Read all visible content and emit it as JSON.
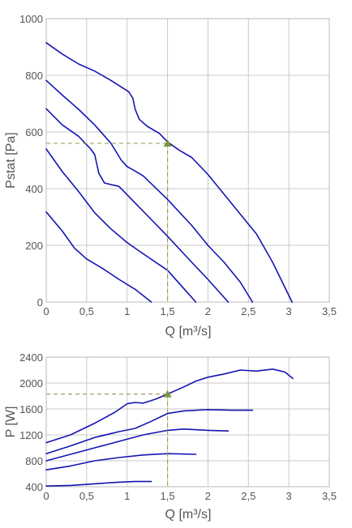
{
  "chart_data": [
    {
      "type": "line",
      "xlabel": "Q [m³/s]",
      "ylabel": "Pstat [Pa]",
      "xlim": [
        0,
        3.5
      ],
      "ylim": [
        0,
        1000
      ],
      "x_ticks": [
        "0",
        "0,5",
        "1",
        "1,5",
        "2",
        "2,5",
        "3",
        "3,5"
      ],
      "y_ticks": [
        "0",
        "200",
        "400",
        "600",
        "800",
        "1000"
      ],
      "grid": true,
      "operating_point": {
        "x": 1.5,
        "y": 560
      },
      "series": [
        {
          "points": [
            [
              0,
              915
            ],
            [
              0.2,
              875
            ],
            [
              0.4,
              840
            ],
            [
              0.6,
              815
            ],
            [
              0.8,
              782
            ],
            [
              0.95,
              755
            ],
            [
              1.02,
              742
            ],
            [
              1.07,
              720
            ],
            [
              1.1,
              680
            ],
            [
              1.15,
              645
            ],
            [
              1.25,
              620
            ],
            [
              1.4,
              595
            ],
            [
              1.5,
              565
            ],
            [
              1.65,
              535
            ],
            [
              1.8,
              510
            ],
            [
              2.0,
              450
            ],
            [
              2.2,
              380
            ],
            [
              2.4,
              310
            ],
            [
              2.6,
              240
            ],
            [
              2.8,
              140
            ],
            [
              3.04,
              0
            ]
          ]
        },
        {
          "points": [
            [
              0,
              782
            ],
            [
              0.2,
              730
            ],
            [
              0.4,
              680
            ],
            [
              0.6,
              625
            ],
            [
              0.8,
              560
            ],
            [
              0.93,
              500
            ],
            [
              1.0,
              478
            ],
            [
              1.1,
              462
            ],
            [
              1.2,
              445
            ],
            [
              1.5,
              362
            ],
            [
              1.8,
              270
            ],
            [
              2.0,
              200
            ],
            [
              2.2,
              140
            ],
            [
              2.4,
              70
            ],
            [
              2.55,
              0
            ]
          ]
        },
        {
          "points": [
            [
              0,
              682
            ],
            [
              0.2,
              625
            ],
            [
              0.4,
              585
            ],
            [
              0.55,
              540
            ],
            [
              0.6,
              520
            ],
            [
              0.65,
              455
            ],
            [
              0.72,
              420
            ],
            [
              0.9,
              408
            ],
            [
              1.2,
              320
            ],
            [
              1.5,
              232
            ],
            [
              1.8,
              140
            ],
            [
              2.0,
              80
            ],
            [
              2.25,
              0
            ]
          ]
        },
        {
          "points": [
            [
              0,
              540
            ],
            [
              0.2,
              460
            ],
            [
              0.4,
              390
            ],
            [
              0.6,
              315
            ],
            [
              0.8,
              258
            ],
            [
              1.0,
              210
            ],
            [
              1.2,
              170
            ],
            [
              1.5,
              112
            ],
            [
              1.7,
              48
            ],
            [
              1.85,
              0
            ]
          ]
        },
        {
          "points": [
            [
              0,
              318
            ],
            [
              0.2,
              250
            ],
            [
              0.35,
              190
            ],
            [
              0.5,
              152
            ],
            [
              0.7,
              118
            ],
            [
              0.9,
              80
            ],
            [
              1.1,
              45
            ],
            [
              1.3,
              0
            ]
          ]
        }
      ]
    },
    {
      "type": "line",
      "xlabel": "Q [m³/s]",
      "ylabel": "P [W]",
      "xlim": [
        0,
        3.5
      ],
      "ylim": [
        400,
        2400
      ],
      "x_ticks": [
        "0",
        "0,5",
        "1",
        "1,5",
        "2",
        "2,5",
        "3",
        "3,5"
      ],
      "y_ticks": [
        "400",
        "800",
        "1200",
        "1600",
        "2000",
        "2400"
      ],
      "grid": true,
      "operating_point": {
        "x": 1.5,
        "y": 1830
      },
      "series": [
        {
          "points": [
            [
              0,
              1080
            ],
            [
              0.3,
              1200
            ],
            [
              0.6,
              1380
            ],
            [
              0.85,
              1550
            ],
            [
              1.0,
              1680
            ],
            [
              1.1,
              1700
            ],
            [
              1.2,
              1690
            ],
            [
              1.35,
              1750
            ],
            [
              1.5,
              1830
            ],
            [
              1.7,
              1940
            ],
            [
              1.85,
              2030
            ],
            [
              2.0,
              2090
            ],
            [
              2.2,
              2140
            ],
            [
              2.4,
              2200
            ],
            [
              2.6,
              2185
            ],
            [
              2.8,
              2215
            ],
            [
              2.95,
              2170
            ],
            [
              3.05,
              2070
            ]
          ]
        },
        {
          "points": [
            [
              0,
              910
            ],
            [
              0.3,
              1030
            ],
            [
              0.6,
              1160
            ],
            [
              0.9,
              1250
            ],
            [
              1.1,
              1300
            ],
            [
              1.3,
              1410
            ],
            [
              1.5,
              1530
            ],
            [
              1.7,
              1570
            ],
            [
              2.0,
              1590
            ],
            [
              2.3,
              1580
            ],
            [
              2.55,
              1580
            ]
          ]
        },
        {
          "points": [
            [
              0,
              800
            ],
            [
              0.3,
              900
            ],
            [
              0.6,
              1000
            ],
            [
              0.9,
              1100
            ],
            [
              1.2,
              1200
            ],
            [
              1.5,
              1270
            ],
            [
              1.7,
              1290
            ],
            [
              2.0,
              1270
            ],
            [
              2.25,
              1260
            ]
          ]
        },
        {
          "points": [
            [
              0,
              660
            ],
            [
              0.3,
              720
            ],
            [
              0.6,
              800
            ],
            [
              0.9,
              850
            ],
            [
              1.2,
              890
            ],
            [
              1.5,
              910
            ],
            [
              1.85,
              900
            ]
          ]
        },
        {
          "points": [
            [
              0,
              410
            ],
            [
              0.3,
              420
            ],
            [
              0.6,
              445
            ],
            [
              0.9,
              470
            ],
            [
              1.1,
              480
            ],
            [
              1.3,
              480
            ]
          ]
        }
      ]
    }
  ]
}
